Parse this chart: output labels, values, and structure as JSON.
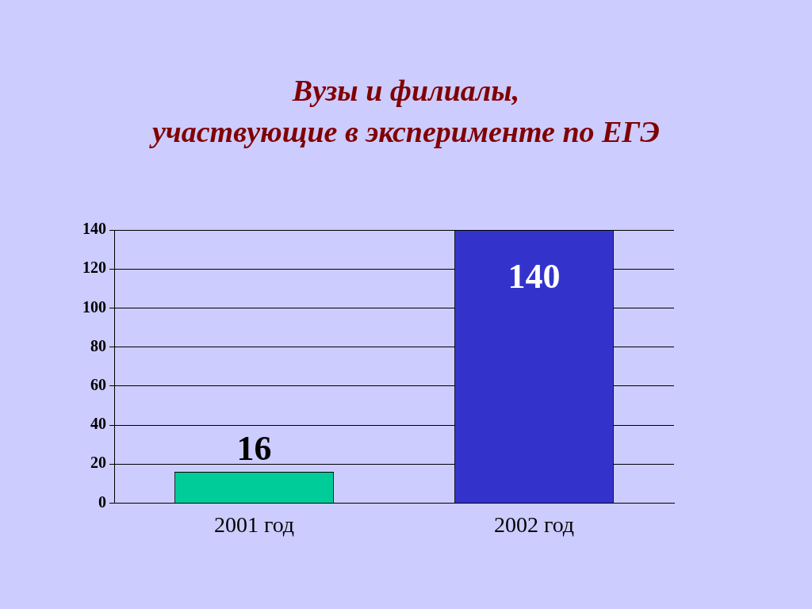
{
  "chart_data": {
    "type": "bar",
    "title": "Вузы и филиалы,\nучаствующие в эксперименте по ЕГЭ",
    "categories": [
      "2001 год",
      "2002 год"
    ],
    "values": [
      16,
      140
    ],
    "colors": [
      "#00cc99",
      "#3333cc"
    ],
    "ylim": [
      0,
      140
    ],
    "yticks": [
      0,
      20,
      40,
      60,
      80,
      100,
      120,
      140
    ],
    "grid": "y",
    "data_labels": true
  }
}
